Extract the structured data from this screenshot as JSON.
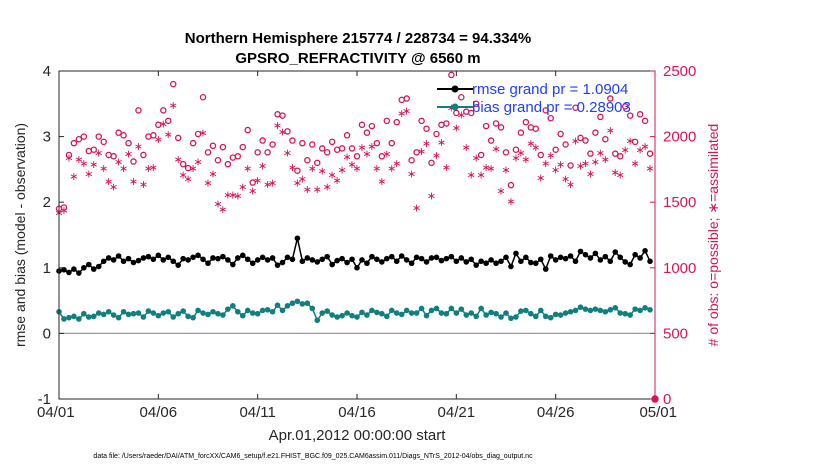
{
  "colors": {
    "rmse": "#000000",
    "bias": "#0f7f7f",
    "obs": "#d6155a",
    "legend_text": "#1f3fff",
    "axis": "#262626"
  },
  "chart_data": {
    "type": "line",
    "title": "Northern Hemisphere 215774 / 228734 = 94.334%",
    "subtitle": "GPSRO_REFRACTIVITY @ 6560 m",
    "xlabel": "Apr.01,2012 00:00:00 start",
    "ylabel_left": "rmse and bias (model - observation)",
    "ylabel_right": "# of obs: o=possible; ∗=assimilated",
    "xlim": [
      0,
      30
    ],
    "ylim_left": [
      -1,
      4
    ],
    "ylim_right": [
      0,
      2500
    ],
    "x_tick_values": [
      0,
      5,
      10,
      15,
      20,
      25,
      30
    ],
    "x_tick_labels": [
      "04/01",
      "04/06",
      "04/11",
      "04/16",
      "04/21",
      "04/26",
      "05/01"
    ],
    "y_left_ticks": [
      "-1",
      "0",
      "1",
      "2",
      "3",
      "4"
    ],
    "y_right_ticks": [
      "0",
      "500",
      "1000",
      "1500",
      "2000",
      "2500"
    ],
    "zero_line": 0,
    "legend": [
      {
        "name": "rmse grand pr = 1.0904",
        "series": "rmse"
      },
      {
        "name": "bias grand pr = 0.28903",
        "series": "bias"
      }
    ],
    "x": [
      0.0,
      0.25,
      0.5,
      0.75,
      1.0,
      1.25,
      1.5,
      1.75,
      2.0,
      2.25,
      2.5,
      2.75,
      3.0,
      3.25,
      3.5,
      3.75,
      4.0,
      4.25,
      4.5,
      4.75,
      5.0,
      5.25,
      5.5,
      5.75,
      6.0,
      6.25,
      6.5,
      6.75,
      7.0,
      7.25,
      7.5,
      7.75,
      8.0,
      8.25,
      8.5,
      8.75,
      9.0,
      9.25,
      9.5,
      9.75,
      10.0,
      10.25,
      10.5,
      10.75,
      11.0,
      11.25,
      11.5,
      11.75,
      12.0,
      12.25,
      12.5,
      12.75,
      13.0,
      13.25,
      13.5,
      13.75,
      14.0,
      14.25,
      14.5,
      14.75,
      15.0,
      15.25,
      15.5,
      15.75,
      16.0,
      16.25,
      16.5,
      16.75,
      17.0,
      17.25,
      17.5,
      17.75,
      18.0,
      18.25,
      18.5,
      18.75,
      19.0,
      19.25,
      19.5,
      19.75,
      20.0,
      20.25,
      20.5,
      20.75,
      21.0,
      21.25,
      21.5,
      21.75,
      22.0,
      22.25,
      22.5,
      22.75,
      23.0,
      23.25,
      23.5,
      23.75,
      24.0,
      24.25,
      24.5,
      24.75,
      25.0,
      25.25,
      25.5,
      25.75,
      26.0,
      26.25,
      26.5,
      26.75,
      27.0,
      27.25,
      27.5,
      27.75,
      28.0,
      28.25,
      28.5,
      28.75,
      29.0,
      29.25,
      29.5,
      29.75
    ],
    "series": [
      {
        "name": "rmse",
        "values": [
          0.95,
          0.97,
          0.93,
          0.98,
          0.92,
          1.0,
          1.05,
          0.98,
          1.02,
          1.1,
          1.15,
          1.12,
          1.18,
          1.1,
          1.14,
          1.08,
          1.11,
          1.15,
          1.17,
          1.13,
          1.19,
          1.12,
          1.16,
          1.1,
          1.04,
          1.14,
          1.12,
          1.16,
          1.19,
          1.13,
          1.07,
          1.15,
          1.14,
          1.17,
          1.12,
          1.05,
          1.15,
          1.19,
          1.13,
          1.07,
          1.12,
          1.16,
          1.12,
          1.15,
          1.04,
          1.08,
          1.16,
          1.13,
          1.45,
          1.1,
          1.15,
          1.12,
          1.09,
          1.13,
          1.17,
          1.05,
          1.11,
          1.14,
          1.08,
          1.13,
          1.0,
          1.12,
          1.07,
          1.17,
          1.13,
          1.09,
          1.14,
          1.17,
          1.1,
          1.18,
          1.12,
          1.07,
          1.16,
          1.14,
          1.09,
          1.15,
          1.16,
          1.11,
          1.14,
          1.17,
          1.1,
          1.15,
          1.09,
          1.13,
          1.04,
          1.1,
          1.07,
          1.12,
          1.07,
          1.1,
          1.16,
          1.02,
          1.22,
          1.1,
          1.16,
          1.08,
          1.07,
          1.13,
          0.98,
          1.18,
          1.12,
          1.16,
          1.14,
          1.18,
          1.1,
          1.25,
          1.2,
          1.15,
          1.22,
          1.12,
          1.17,
          1.1,
          1.24,
          1.16,
          1.09,
          1.05,
          1.2,
          1.15,
          1.26,
          1.1
        ]
      },
      {
        "name": "bias",
        "values": [
          0.33,
          0.22,
          0.24,
          0.26,
          0.22,
          0.3,
          0.25,
          0.26,
          0.31,
          0.29,
          0.33,
          0.28,
          0.24,
          0.33,
          0.29,
          0.3,
          0.31,
          0.25,
          0.34,
          0.31,
          0.27,
          0.31,
          0.33,
          0.25,
          0.3,
          0.34,
          0.26,
          0.24,
          0.35,
          0.31,
          0.29,
          0.33,
          0.3,
          0.28,
          0.37,
          0.42,
          0.33,
          0.27,
          0.35,
          0.31,
          0.3,
          0.35,
          0.36,
          0.33,
          0.43,
          0.35,
          0.42,
          0.46,
          0.49,
          0.45,
          0.46,
          0.38,
          0.2,
          0.31,
          0.34,
          0.28,
          0.25,
          0.27,
          0.31,
          0.27,
          0.25,
          0.32,
          0.28,
          0.35,
          0.32,
          0.3,
          0.26,
          0.35,
          0.31,
          0.29,
          0.35,
          0.31,
          0.31,
          0.38,
          0.27,
          0.35,
          0.38,
          0.31,
          0.3,
          0.38,
          0.31,
          0.37,
          0.28,
          0.31,
          0.26,
          0.38,
          0.28,
          0.32,
          0.3,
          0.25,
          0.31,
          0.23,
          0.25,
          0.34,
          0.35,
          0.3,
          0.26,
          0.35,
          0.26,
          0.24,
          0.29,
          0.28,
          0.31,
          0.33,
          0.35,
          0.4,
          0.37,
          0.35,
          0.37,
          0.35,
          0.33,
          0.36,
          0.39,
          0.31,
          0.3,
          0.28,
          0.37,
          0.35,
          0.39,
          0.36
        ]
      },
      {
        "name": "possible",
        "values": [
          1450,
          1460,
          1860,
          1950,
          1980,
          2000,
          1890,
          1900,
          2000,
          1960,
          1860,
          1850,
          2030,
          2010,
          1950,
          1810,
          2200,
          1860,
          2000,
          2010,
          2090,
          2200,
          2120,
          2400,
          1990,
          1790,
          1760,
          1950,
          2020,
          2300,
          1880,
          1930,
          1820,
          1920,
          1790,
          1840,
          1850,
          1920,
          2050,
          1650,
          1880,
          1970,
          1880,
          1940,
          2170,
          2160,
          2040,
          1970,
          1740,
          1950,
          1820,
          1940,
          1800,
          1910,
          1880,
          1960,
          1900,
          1910,
          2010,
          1910,
          1850,
          2090,
          2030,
          2080,
          1950,
          1850,
          2120,
          1950,
          2110,
          2280,
          2290,
          1820,
          1880,
          2120,
          2060,
          1800,
          2020,
          2090,
          2100,
          2470,
          2180,
          2300,
          2190,
          2180,
          2250,
          1860,
          2080,
          1970,
          2100,
          2070,
          1880,
          1630,
          1900,
          2030,
          2110,
          2070,
          2060,
          1860,
          2200,
          2140,
          1900,
          2020,
          1940,
          1780,
          2220,
          1990,
          1970,
          1870,
          2030,
          2150,
          1980,
          2290,
          1870,
          1850,
          2230,
          2160,
          1960,
          2170,
          2120,
          1870
        ]
      },
      {
        "name": "assimilated",
        "values": [
          1420,
          1440,
          1840,
          1700,
          1830,
          1800,
          1720,
          1790,
          1880,
          1760,
          1660,
          1620,
          1810,
          1760,
          1870,
          1660,
          1930,
          1640,
          1760,
          1770,
          1980,
          2100,
          2020,
          2240,
          1830,
          1710,
          1680,
          1760,
          1810,
          2030,
          1650,
          1720,
          1490,
          1450,
          1560,
          1560,
          1550,
          1620,
          1760,
          1590,
          1670,
          1780,
          1640,
          1650,
          2090,
          2040,
          1880,
          1770,
          1650,
          1680,
          1600,
          1760,
          1600,
          1740,
          1620,
          1710,
          1670,
          1750,
          1850,
          1790,
          1760,
          1920,
          1870,
          1930,
          1760,
          1660,
          1870,
          1760,
          1800,
          2180,
          2200,
          1720,
          1460,
          1890,
          1950,
          1550,
          1860,
          1960,
          1770,
          2220,
          2070,
          2170,
          1920,
          1710,
          1840,
          1710,
          1770,
          1760,
          1910,
          1590,
          1750,
          1510,
          1840,
          1880,
          1830,
          1950,
          1920,
          1690,
          1800,
          1860,
          1750,
          1790,
          1680,
          1640,
          1970,
          1780,
          1800,
          1720,
          1810,
          1880,
          1830,
          2050,
          1730,
          1710,
          1900,
          1970,
          1800,
          1900,
          1930,
          1760
        ]
      }
    ]
  },
  "footer": "data file: /Users/raeder/DAI/ATM_forcXX/CAM6_setup/f.e21.FHIST_BGC.f09_025.CAM6assim.011/Diags_NTrS_2012-04/obs_diag_output.nc"
}
